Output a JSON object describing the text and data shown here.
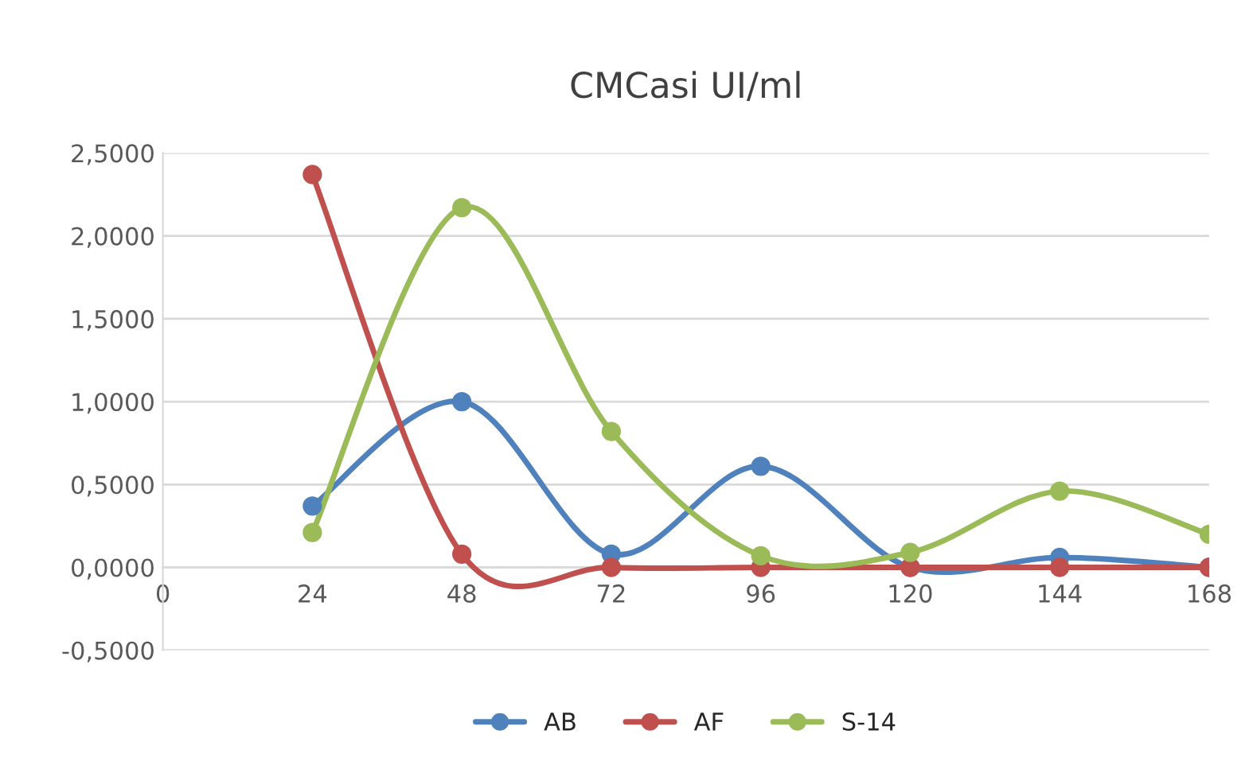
{
  "chart_data": {
    "type": "line",
    "title": "CMCasi UI/ml",
    "x": [
      24,
      48,
      72,
      96,
      120,
      144,
      168
    ],
    "series": [
      {
        "name": "AB",
        "color": "#4f81bd",
        "values": [
          0.37,
          1.0,
          0.08,
          0.61,
          0.0,
          0.06,
          0.0
        ]
      },
      {
        "name": "AF",
        "color": "#c0504d",
        "values": [
          2.37,
          0.08,
          0.0,
          0.0,
          0.0,
          0.0,
          0.0
        ]
      },
      {
        "name": "S-14",
        "color": "#9bbb59",
        "values": [
          0.21,
          2.17,
          0.82,
          0.07,
          0.09,
          0.46,
          0.2
        ]
      }
    ],
    "xlim": [
      0,
      168
    ],
    "xticks": [
      0,
      24,
      48,
      72,
      96,
      120,
      144,
      168
    ],
    "ylim": [
      -0.5,
      2.5
    ],
    "yticks": [
      {
        "value": -0.5,
        "label": "-0,5000"
      },
      {
        "value": 0,
        "label": "0,0000"
      },
      {
        "value": 0.5,
        "label": "0,5000"
      },
      {
        "value": 1.0,
        "label": "1,0000"
      },
      {
        "value": 1.5,
        "label": "1,5000"
      },
      {
        "value": 2.0,
        "label": "2,0000"
      },
      {
        "value": 2.5,
        "label": "2,5000"
      }
    ],
    "grid": "y",
    "legend": "bottom",
    "marker": "circle",
    "line_style": "solid"
  }
}
